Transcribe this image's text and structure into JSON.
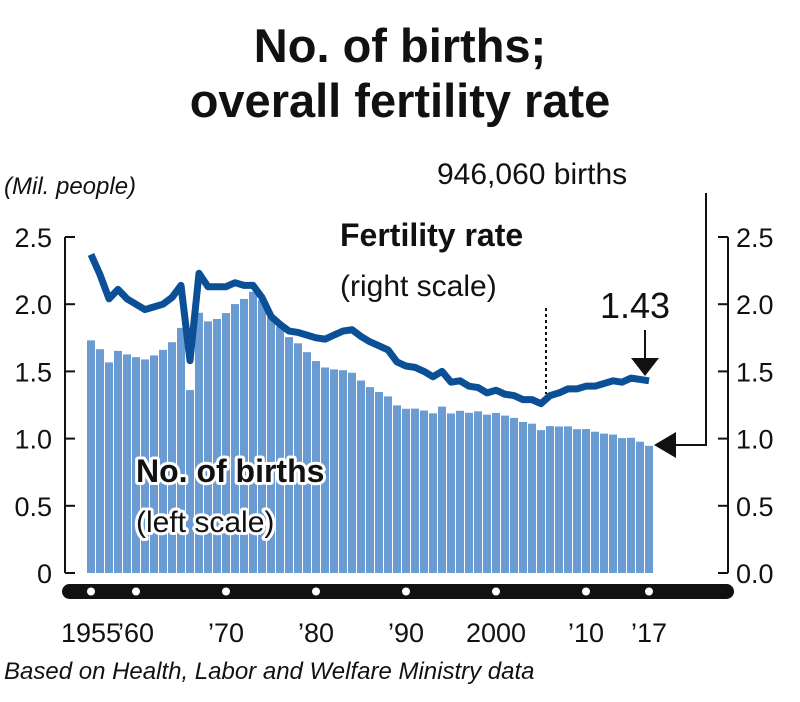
{
  "chart_data": {
    "type": "bar+line",
    "title": [
      "No. of births;",
      "overall fertility rate"
    ],
    "left_unit": "(Mil. people)",
    "left_ticks": [
      "0",
      "0.5",
      "1.0",
      "1.5",
      "2.0",
      "2.5"
    ],
    "right_ticks": [
      "0.0",
      "0.5",
      "1.0",
      "1.5",
      "2.0",
      "2.5"
    ],
    "ylim": [
      0,
      2.5
    ],
    "x_ticks": [
      {
        "year": 1955,
        "label": "1955"
      },
      {
        "year": 1960,
        "label": "’60"
      },
      {
        "year": 1970,
        "label": "’70"
      },
      {
        "year": 1980,
        "label": "’80"
      },
      {
        "year": 1990,
        "label": "’90"
      },
      {
        "year": 2000,
        "label": "2000"
      },
      {
        "year": 2010,
        "label": "’10"
      },
      {
        "year": 2017,
        "label": "’17"
      }
    ],
    "axis_dot_years": [
      1955,
      1960,
      1970,
      1980,
      1990,
      2000,
      2010,
      2017
    ],
    "years_start": 1955,
    "series": [
      {
        "name": "No. of births",
        "sublabel": "(left scale)",
        "type": "bar",
        "color": "#6a9bd3",
        "values": [
          1.731,
          1.665,
          1.567,
          1.653,
          1.626,
          1.606,
          1.589,
          1.619,
          1.66,
          1.717,
          1.824,
          1.361,
          1.936,
          1.872,
          1.89,
          1.934,
          2.001,
          2.039,
          2.092,
          2.03,
          1.901,
          1.833,
          1.755,
          1.709,
          1.643,
          1.577,
          1.529,
          1.515,
          1.509,
          1.49,
          1.432,
          1.383,
          1.347,
          1.314,
          1.247,
          1.222,
          1.223,
          1.209,
          1.188,
          1.238,
          1.187,
          1.207,
          1.192,
          1.203,
          1.178,
          1.191,
          1.171,
          1.154,
          1.124,
          1.111,
          1.063,
          1.093,
          1.09,
          1.091,
          1.07,
          1.071,
          1.051,
          1.037,
          1.03,
          1.004,
          1.006,
          0.977,
          0.946
        ]
      },
      {
        "name": "Fertility rate",
        "sublabel": "(right scale)",
        "type": "line",
        "color": "#0b4f97",
        "values": [
          2.37,
          2.22,
          2.04,
          2.11,
          2.04,
          2.0,
          1.96,
          1.98,
          2.0,
          2.05,
          2.14,
          1.58,
          2.23,
          2.13,
          2.13,
          2.13,
          2.16,
          2.14,
          2.14,
          2.05,
          1.91,
          1.85,
          1.8,
          1.79,
          1.77,
          1.75,
          1.74,
          1.77,
          1.8,
          1.81,
          1.76,
          1.72,
          1.69,
          1.66,
          1.57,
          1.54,
          1.53,
          1.5,
          1.46,
          1.5,
          1.42,
          1.43,
          1.39,
          1.38,
          1.34,
          1.36,
          1.33,
          1.32,
          1.29,
          1.29,
          1.26,
          1.32,
          1.34,
          1.37,
          1.37,
          1.39,
          1.39,
          1.41,
          1.43,
          1.42,
          1.45,
          1.44,
          1.43
        ]
      }
    ],
    "annotations": {
      "births_latest": "946,060 births",
      "rate_latest": "1.43"
    },
    "source": "Based on Health, Labor and Welfare Ministry data"
  }
}
